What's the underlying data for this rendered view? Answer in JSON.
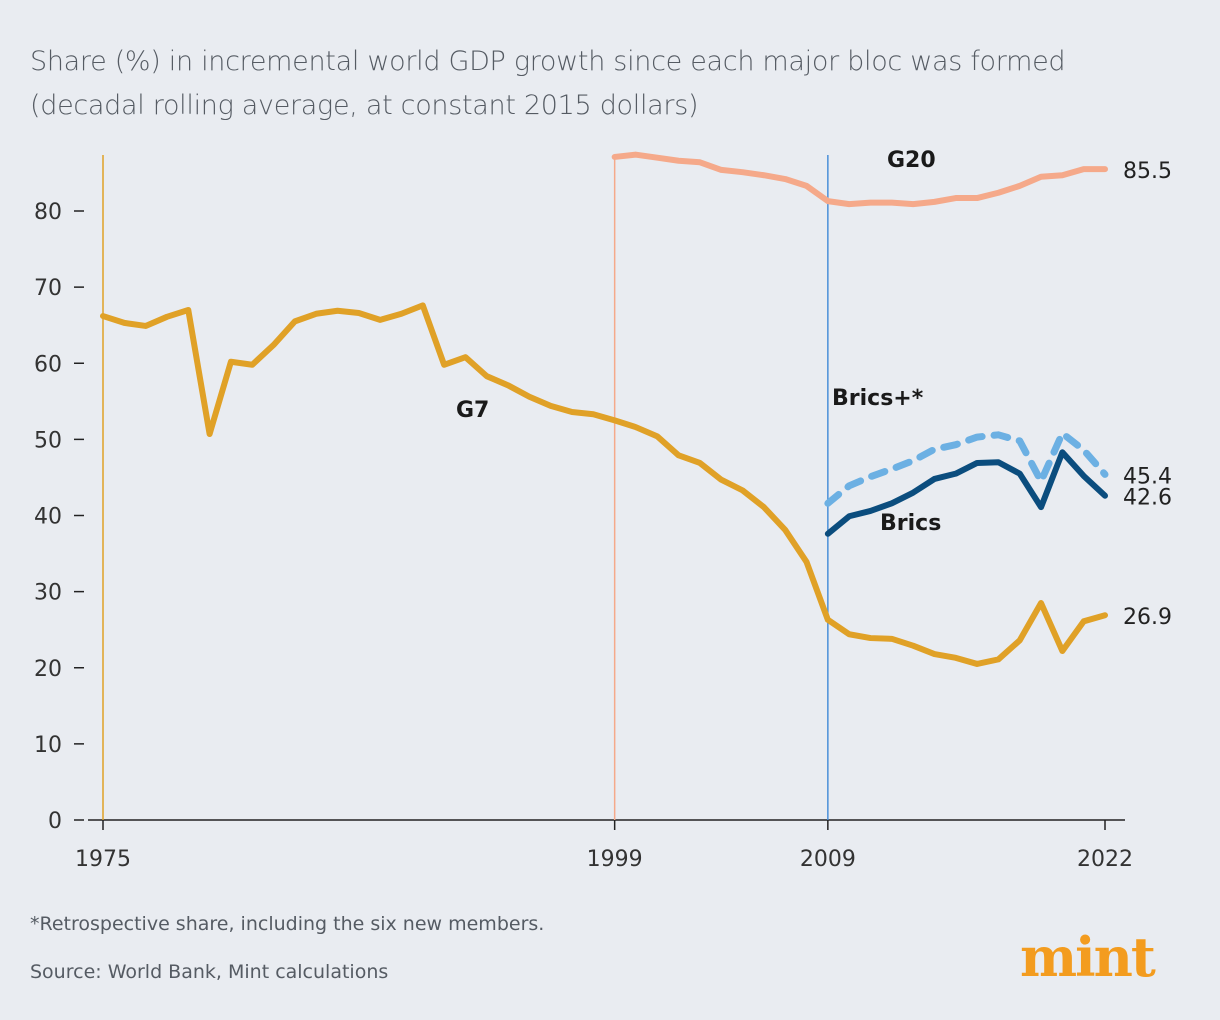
{
  "chart_data": {
    "type": "line",
    "title": "Share (%) in incremental world GDP growth since each major bloc was formed",
    "subtitle": "(decadal rolling average, at constant 2015 dollars)",
    "xlabel": "",
    "ylabel": "",
    "xlim": [
      1975,
      2022
    ],
    "ylim": [
      0,
      88
    ],
    "x_ticks": [
      "1975",
      "1999",
      "2009",
      "2022"
    ],
    "y_ticks": [
      "0",
      "10",
      "20",
      "30",
      "40",
      "50",
      "60",
      "70",
      "80"
    ],
    "grid": false,
    "formation_lines": [
      {
        "year": 1975,
        "color": "#e0a127"
      },
      {
        "year": 1999,
        "color": "#f5a98a"
      },
      {
        "year": 2009,
        "color": "#4a90d9"
      }
    ],
    "series": [
      {
        "name": "G7",
        "color": "#e0a127",
        "dashed": false,
        "start": 1975,
        "end_label": "26.9",
        "values": [
          66.2,
          65.3,
          64.9,
          66.1,
          67.0,
          50.7,
          60.2,
          59.8,
          62.4,
          65.5,
          66.5,
          66.9,
          66.6,
          65.7,
          66.5,
          67.6,
          59.8,
          60.8,
          58.3,
          57.1,
          55.6,
          54.4,
          53.6,
          53.3,
          52.5,
          51.6,
          50.4,
          47.9,
          46.9,
          44.7,
          43.3,
          41.1,
          38.1,
          33.9,
          26.3,
          24.4,
          23.9,
          23.8,
          22.9,
          21.8,
          21.3,
          20.5,
          21.1,
          23.6,
          28.5,
          22.2,
          26.1,
          26.9
        ]
      },
      {
        "name": "G20",
        "color": "#f5a98a",
        "dashed": false,
        "start": 1999,
        "end_label": "85.5",
        "values": [
          87.1,
          87.4,
          87.0,
          86.6,
          86.4,
          85.4,
          85.1,
          84.7,
          84.2,
          83.3,
          81.3,
          80.9,
          81.1,
          81.1,
          80.9,
          81.2,
          81.7,
          81.7,
          82.4,
          83.3,
          84.5,
          84.7,
          85.5,
          85.5
        ]
      },
      {
        "name": "Brics+*",
        "color": "#6cb0e3",
        "dashed": true,
        "start": 2009,
        "end_label": "45.4",
        "values": [
          41.6,
          43.9,
          45.1,
          46.1,
          47.2,
          48.7,
          49.3,
          50.3,
          50.6,
          49.8,
          44.5,
          50.8,
          48.6,
          45.4
        ]
      },
      {
        "name": "Brics",
        "color": "#0b4d7e",
        "dashed": false,
        "start": 2009,
        "end_label": "42.6",
        "values": [
          37.6,
          39.9,
          40.6,
          41.6,
          43.0,
          44.8,
          45.5,
          46.9,
          47.0,
          45.5,
          41.1,
          48.3,
          45.2,
          42.6
        ]
      }
    ]
  },
  "footnote": "*Retrospective share, including the six new members.",
  "source": "Source: World Bank, Mint calculations",
  "logo": "mint"
}
